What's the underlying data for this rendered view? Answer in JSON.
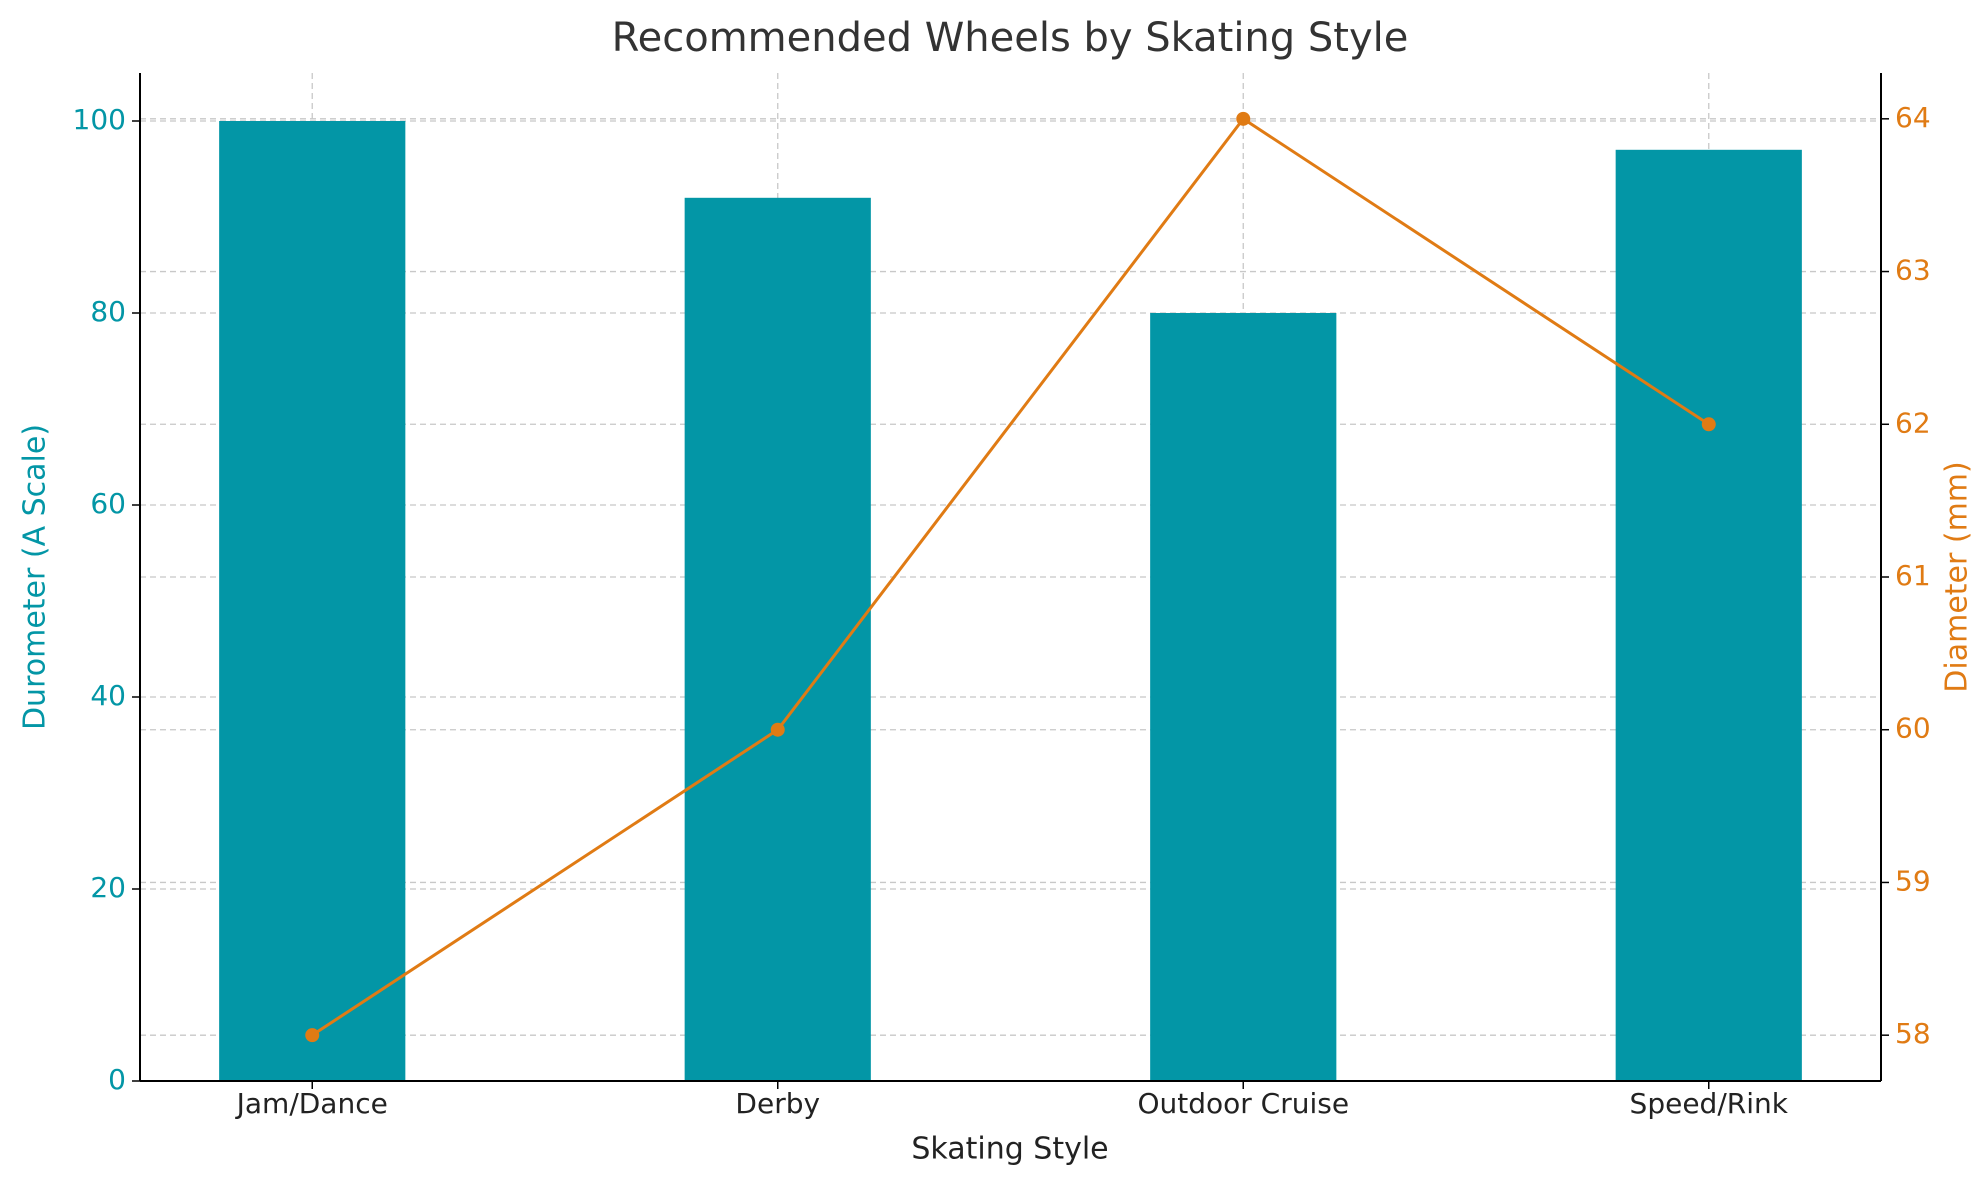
{
  "chart_data": {
    "type": "bar",
    "title": "Recommended Wheels by Skating Style",
    "xlabel": "Skating Style",
    "ylabel": "Durometer (A Scale)",
    "y2label": "Diameter (mm)",
    "categories": [
      "Jam/Dance",
      "Derby",
      "Outdoor Cruise",
      "Speed/Rink"
    ],
    "series": [
      {
        "type": "bar",
        "color": "#0396a6",
        "values": [
          100,
          92,
          80,
          97
        ]
      },
      {
        "type": "line",
        "axis": "y2",
        "color": "#e07b14",
        "values": [
          58,
          60,
          64,
          62
        ]
      }
    ],
    "ylim": [
      0,
      105
    ],
    "yticks": [
      0,
      20,
      40,
      60,
      80,
      100
    ],
    "y2lim": [
      57.7,
      64.3
    ],
    "y2ticks": [
      58,
      59,
      60,
      61,
      62,
      63,
      64
    ],
    "grid": true
  }
}
